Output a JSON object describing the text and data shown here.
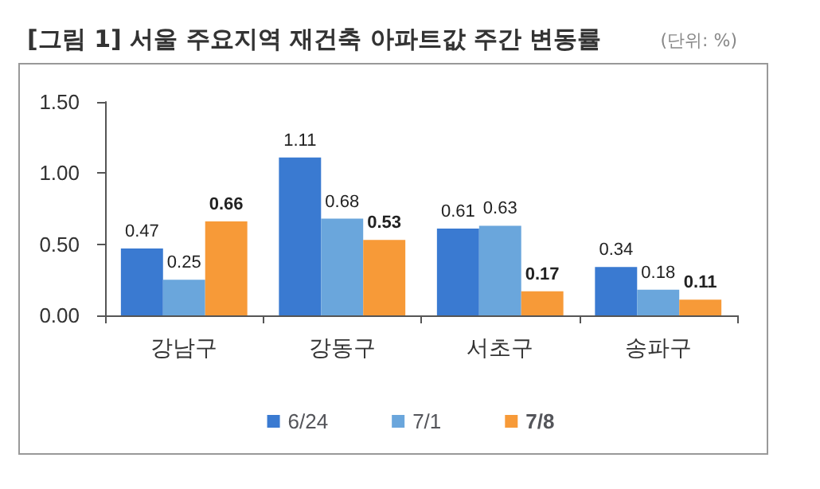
{
  "chart_data": {
    "type": "bar",
    "title": "[그림 1] 서울 주요지역 재건축 아파트값 주간 변동률",
    "subtitle": "(단위: %)",
    "categories": [
      "강남구",
      "강동구",
      "서초구",
      "송파구"
    ],
    "series": [
      {
        "name": "6/24",
        "color": "#3a7ad1",
        "values": [
          0.47,
          1.11,
          0.61,
          0.34
        ]
      },
      {
        "name": "7/1",
        "color": "#6aa6dc",
        "values": [
          0.25,
          0.68,
          0.63,
          0.18
        ]
      },
      {
        "name": "7/8",
        "color": "#f79a38",
        "values": [
          0.66,
          0.53,
          0.17,
          0.11
        ]
      }
    ],
    "ylim": [
      0,
      1.5
    ],
    "yticks": [
      {
        "value": 0,
        "label": "0.00"
      },
      {
        "value": 0.5,
        "label": "0.50"
      },
      {
        "value": 1,
        "label": "1.00"
      },
      {
        "value": 1.5,
        "label": "1.50"
      }
    ],
    "data_labels": true,
    "grid": false,
    "legend": "bottom"
  }
}
